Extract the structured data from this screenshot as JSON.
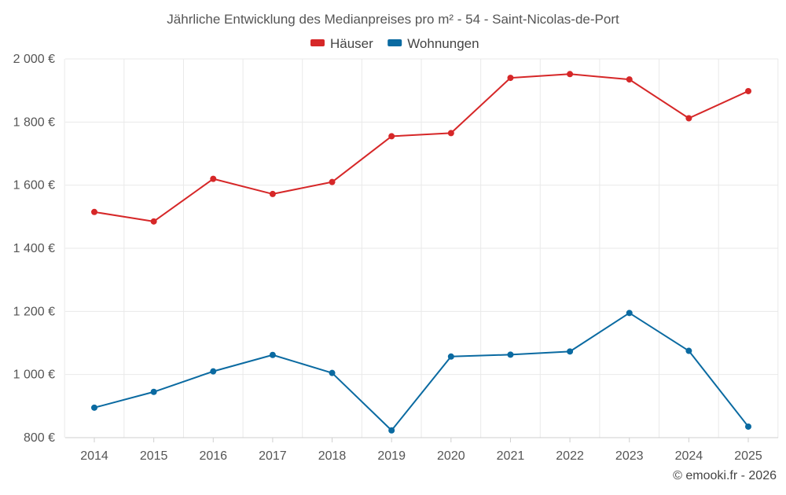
{
  "chart_data": {
    "type": "line",
    "title": "Jährliche Entwicklung des Medianpreises pro m² - 54 - Saint-Nicolas-de-Port",
    "categories": [
      "2014",
      "2015",
      "2016",
      "2017",
      "2018",
      "2019",
      "2020",
      "2021",
      "2022",
      "2023",
      "2024",
      "2025"
    ],
    "series": [
      {
        "name": "Häuser",
        "color": "#d62728",
        "values": [
          1515,
          1485,
          1620,
          1572,
          1610,
          1755,
          1765,
          1940,
          1952,
          1935,
          1812,
          1898
        ]
      },
      {
        "name": "Wohnungen",
        "color": "#0a6aa1",
        "values": [
          895,
          945,
          1010,
          1062,
          1005,
          823,
          1057,
          1063,
          1073,
          1195,
          1075,
          835
        ]
      }
    ],
    "y_ticks": [
      800,
      1000,
      1200,
      1400,
      1600,
      1800,
      2000
    ],
    "y_tick_labels": [
      "800 €",
      "1 000 €",
      "1 200 €",
      "1 400 €",
      "1 600 €",
      "1 800 €",
      "2 000 €"
    ],
    "ylim": [
      800,
      2000
    ],
    "xlabel": "",
    "ylabel": "",
    "grid": true,
    "legend_position": "top-center"
  },
  "credit": "© emooki.fr - 2026"
}
